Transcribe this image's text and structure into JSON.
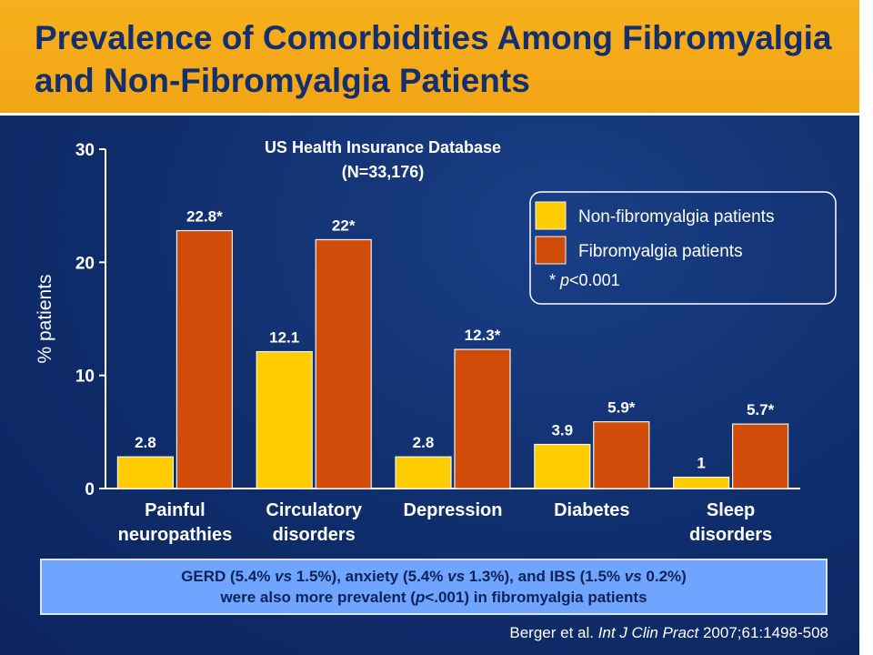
{
  "title": "Prevalence of Comorbidities Among Fibromyalgia and Non-Fibromyalgia Patients",
  "chart_data": {
    "type": "bar",
    "subtitle_lines": [
      "US Health Insurance Database",
      "(N=33,176)"
    ],
    "ylabel": "% patients",
    "xlabel": "",
    "ylim": [
      0,
      30
    ],
    "yticks": [
      0,
      10,
      20,
      30
    ],
    "grid": false,
    "legend_position": "top-right",
    "categories": [
      [
        "Painful",
        "neuropathies"
      ],
      [
        "Circulatory",
        "disorders"
      ],
      [
        "Depression"
      ],
      [
        "Diabetes"
      ],
      [
        "Sleep",
        "disorders"
      ]
    ],
    "series": [
      {
        "name": "Non-fibromyalgia patients",
        "color": "#ffcc00",
        "values": [
          2.8,
          12.1,
          2.8,
          3.9,
          1
        ],
        "labels": [
          "2.8",
          "12.1",
          "2.8",
          "3.9",
          "1"
        ]
      },
      {
        "name": "Fibromyalgia patients",
        "color": "#d14c08",
        "values": [
          22.8,
          22,
          12.3,
          5.9,
          5.7
        ],
        "labels": [
          "22.8*",
          "22*",
          "12.3*",
          "5.9*",
          "5.7*"
        ]
      }
    ],
    "legend_note": {
      "star": "* ",
      "p": "p",
      "rest": "<0.001"
    }
  },
  "note": {
    "line1": {
      "a": "GERD (5.4% ",
      "vs1": "vs",
      "b": " 1.5%), anxiety (5.4% ",
      "vs2": "vs",
      "c": " 1.3%), and IBS (1.5% ",
      "vs3": "vs",
      "d": " 0.2%)"
    },
    "line2": {
      "a": "were also more prevalent (",
      "p": "p",
      "b": "<.001) in fibromyalgia patients"
    }
  },
  "citation": {
    "authors": "Berger et al. ",
    "journal": "Int J Clin Pract",
    "rest": " 2007;61:1498-508"
  }
}
